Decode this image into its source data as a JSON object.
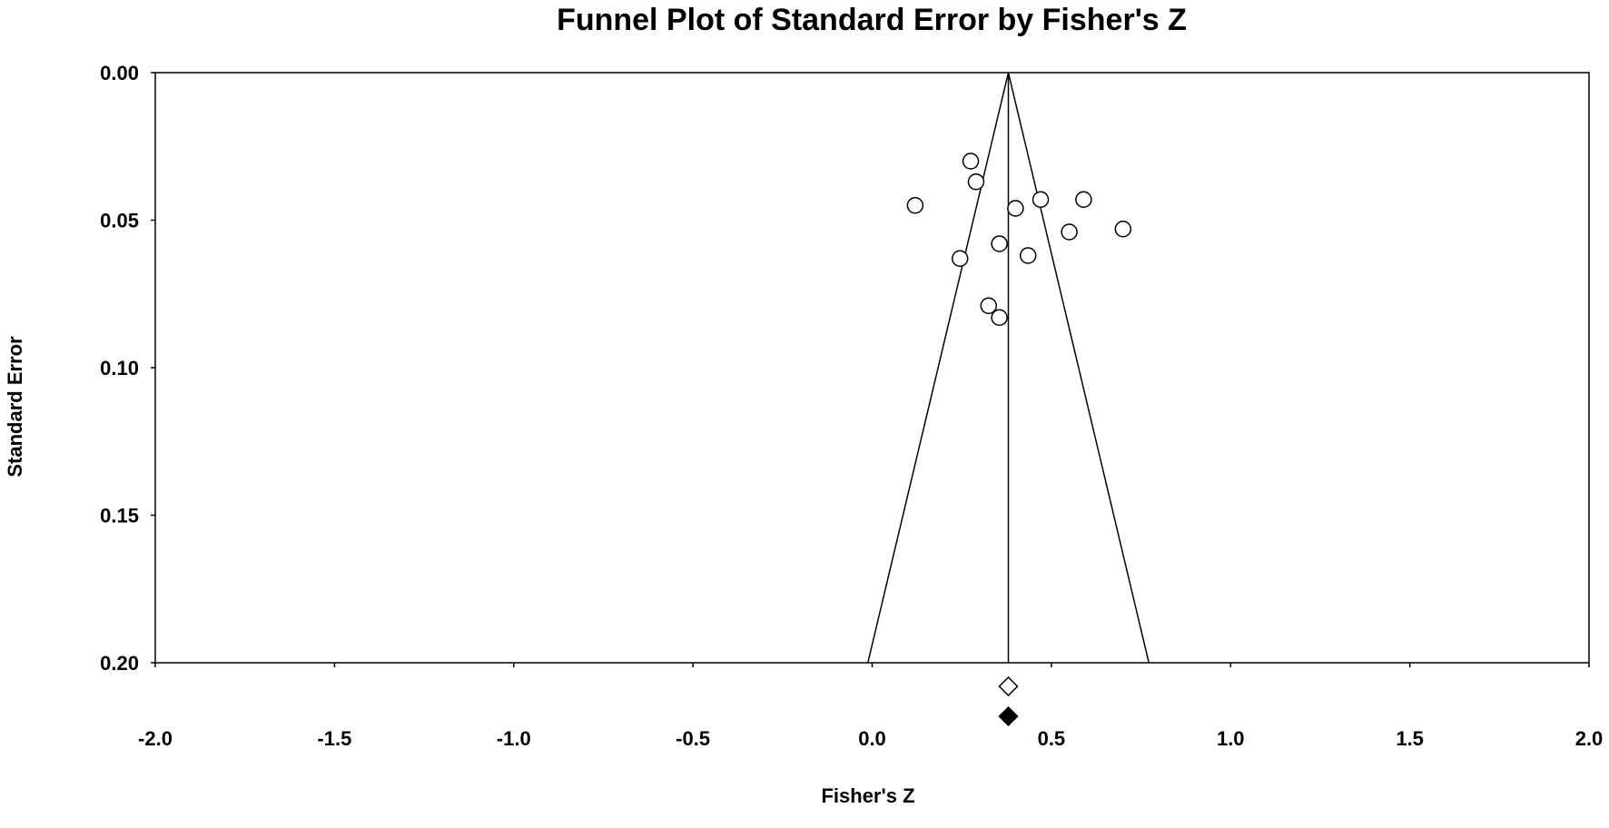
{
  "chart_data": {
    "type": "scatter",
    "title": "Funnel Plot of Standard Error by Fisher's Z",
    "xlabel": "Fisher's Z",
    "ylabel": "Standard Error",
    "xlim": [
      -2.0,
      2.0
    ],
    "ylim": [
      0.0,
      0.2
    ],
    "y_inverted": true,
    "x_ticks": [
      "-2.0",
      "-1.5",
      "-1.0",
      "-0.5",
      "0.0",
      "0.5",
      "1.0",
      "1.5",
      "2.0"
    ],
    "y_ticks": [
      "0.00",
      "0.05",
      "0.10",
      "0.15",
      "0.20"
    ],
    "grid": false,
    "legend": "none",
    "funnel_center": 0.38,
    "funnel_z": 1.96,
    "points": [
      {
        "x": 0.275,
        "y": 0.03
      },
      {
        "x": 0.29,
        "y": 0.037
      },
      {
        "x": 0.12,
        "y": 0.045
      },
      {
        "x": 0.4,
        "y": 0.046
      },
      {
        "x": 0.47,
        "y": 0.043
      },
      {
        "x": 0.59,
        "y": 0.043
      },
      {
        "x": 0.55,
        "y": 0.054
      },
      {
        "x": 0.7,
        "y": 0.053
      },
      {
        "x": 0.355,
        "y": 0.058
      },
      {
        "x": 0.245,
        "y": 0.063
      },
      {
        "x": 0.435,
        "y": 0.062
      },
      {
        "x": 0.325,
        "y": 0.079
      },
      {
        "x": 0.355,
        "y": 0.083
      }
    ],
    "summary_markers": [
      {
        "name": "observed",
        "x": 0.38,
        "style": "open-diamond"
      },
      {
        "name": "imputed",
        "x": 0.38,
        "style": "filled-diamond"
      }
    ]
  }
}
